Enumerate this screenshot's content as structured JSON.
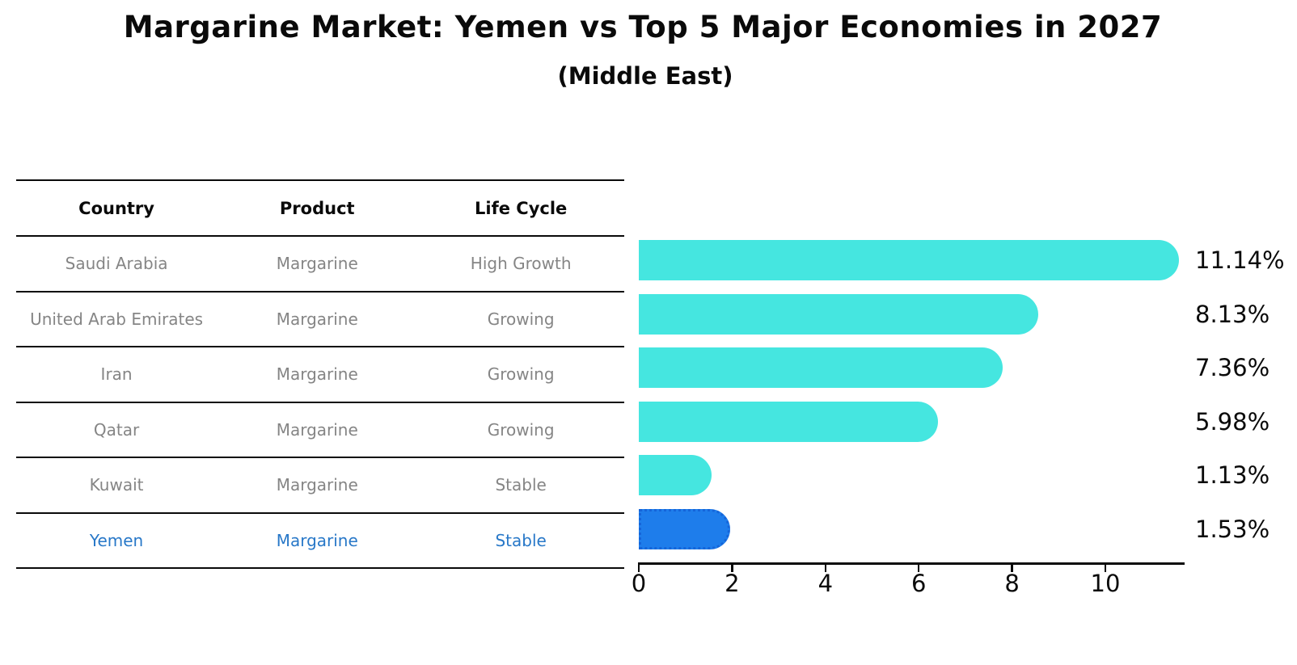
{
  "title": "Margarine Market: Yemen vs Top 5 Major Economies in 2027",
  "subtitle": "(Middle East)",
  "table": {
    "headers": [
      "Country",
      "Product",
      "Life Cycle"
    ],
    "rows": [
      {
        "country": "Saudi Arabia",
        "product": "Margarine",
        "life_cycle": "High Growth",
        "highlight": false
      },
      {
        "country": "United Arab Emirates",
        "product": "Margarine",
        "life_cycle": "Growing",
        "highlight": false
      },
      {
        "country": "Iran",
        "product": "Margarine",
        "life_cycle": "Growing",
        "highlight": false
      },
      {
        "country": "Qatar",
        "product": "Margarine",
        "life_cycle": "Growing",
        "highlight": false
      },
      {
        "country": "Kuwait",
        "product": "Margarine",
        "life_cycle": "Stable",
        "highlight": false
      },
      {
        "country": "Yemen",
        "product": "Margarine",
        "life_cycle": "Stable",
        "highlight": true
      }
    ]
  },
  "chart_data": {
    "type": "bar",
    "orientation": "horizontal",
    "title": "Margarine Market: Yemen vs Top 5 Major Economies in 2027",
    "subtitle": "(Middle East)",
    "categories": [
      "Saudi Arabia",
      "United Arab Emirates",
      "Iran",
      "Qatar",
      "Kuwait",
      "Yemen"
    ],
    "values": [
      11.14,
      8.13,
      7.36,
      5.98,
      1.13,
      1.53
    ],
    "value_labels": [
      "11.14%",
      "8.13%",
      "7.36%",
      "5.98%",
      "1.13%",
      "1.53%"
    ],
    "x_ticks": [
      0,
      2,
      4,
      6,
      8,
      10
    ],
    "xlim": [
      0,
      11.7
    ],
    "grid": false,
    "legend": false,
    "highlight_category": "Yemen",
    "colors": {
      "bar": "#45E6E0",
      "highlight_bar": "#1E7DEB",
      "highlight_border": "#1565D9",
      "axis": "#0a0a0a",
      "value_label_text": "#0a0a0a",
      "table_text": "#858585",
      "highlight_text": "#2878C8"
    }
  }
}
